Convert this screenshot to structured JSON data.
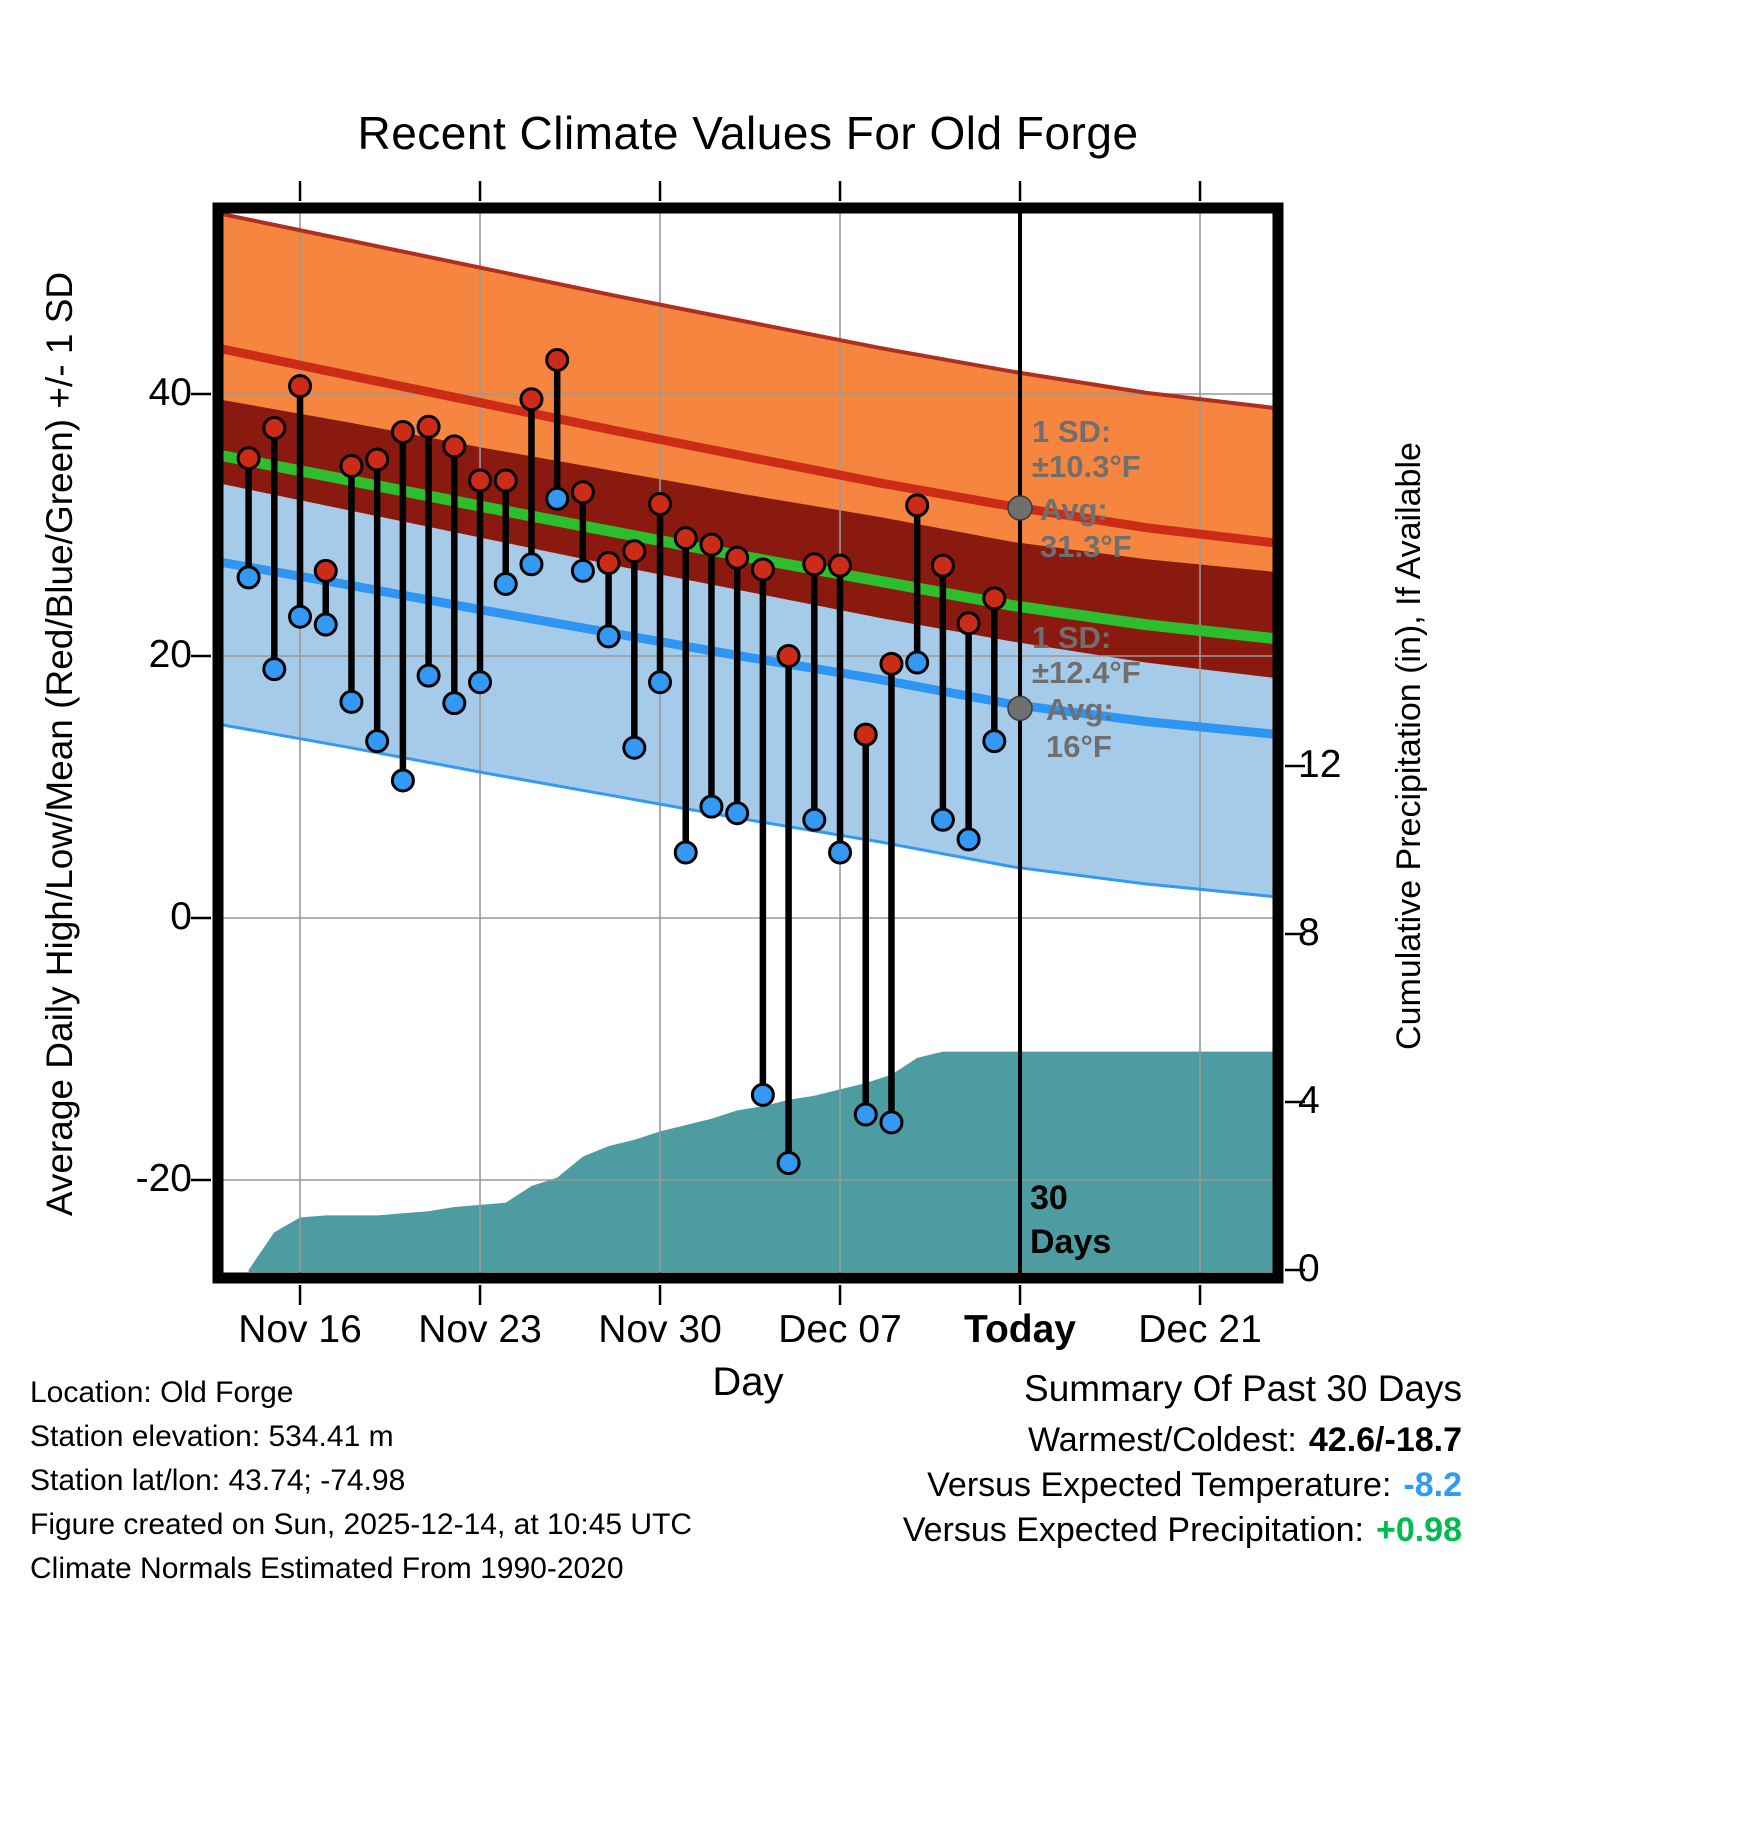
{
  "chart_data": {
    "type": "line",
    "title": "Recent Climate Values For Old Forge",
    "x_label": "Day",
    "y_left_label": "Average Daily High/Low/Mean (Red/Blue/Green) +/- 1 SD",
    "y_right_label": "Cumulative Precipitation (in), If Available",
    "y_left_tick_values": [
      40,
      20,
      0,
      -20
    ],
    "y_left_tick_labels": [
      "40",
      "20",
      "0",
      "-20"
    ],
    "y_right_tick_values": [
      12,
      8,
      4,
      0
    ],
    "y_right_tick_labels": [
      "12",
      "8",
      "4",
      "0"
    ],
    "y_left_range": [
      -27.5,
      54.2
    ],
    "y_right_range": [
      0,
      13.3
    ],
    "x_ticks": [
      {
        "label": "Nov 16",
        "day": 2
      },
      {
        "label": "Nov 23",
        "day": 9
      },
      {
        "label": "Nov 30",
        "day": 16
      },
      {
        "label": "Dec 07",
        "day": 23
      },
      {
        "label": "Today",
        "day": 30
      },
      {
        "label": "Dec 21",
        "day": 37
      }
    ],
    "start_date": "Nov 14",
    "today_index": 30,
    "dates": [
      "Nov 14",
      "Nov 15",
      "Nov 16",
      "Nov 17",
      "Nov 18",
      "Nov 19",
      "Nov 20",
      "Nov 21",
      "Nov 22",
      "Nov 23",
      "Nov 24",
      "Nov 25",
      "Nov 26",
      "Nov 27",
      "Nov 28",
      "Nov 29",
      "Nov 30",
      "Dec 01",
      "Dec 02",
      "Dec 03",
      "Dec 04",
      "Dec 05",
      "Dec 06",
      "Dec 07",
      "Dec 08",
      "Dec 09",
      "Dec 10",
      "Dec 11",
      "Dec 12",
      "Dec 13"
    ],
    "daily_high": [
      35.1,
      37.4,
      40.6,
      26.5,
      34.5,
      35.0,
      37.1,
      37.5,
      36.0,
      33.4,
      33.4,
      39.6,
      42.6,
      32.5,
      27.1,
      28.0,
      31.6,
      29.0,
      28.5,
      27.5,
      26.6,
      20.0,
      27.0,
      26.9,
      14.0,
      19.4,
      31.5,
      26.9,
      22.5,
      24.4
    ],
    "daily_low": [
      26.0,
      19.0,
      23.0,
      22.4,
      16.5,
      13.5,
      10.5,
      18.5,
      16.4,
      18.0,
      25.5,
      27.0,
      32.0,
      26.5,
      21.5,
      13.0,
      18.0,
      5.0,
      8.5,
      8.0,
      -13.5,
      -18.7,
      7.5,
      5.0,
      -15.0,
      -15.6,
      19.5,
      7.5,
      6.0,
      13.5
    ],
    "normals": {
      "mean_high": [
        43.5,
        41.4,
        39.3,
        37.2,
        35.2,
        33.2,
        31.4,
        29.8,
        28.6
      ],
      "mean_low": [
        27.2,
        25.4,
        23.5,
        21.7,
        19.9,
        18.2,
        16.3,
        15.0,
        14.0
      ],
      "high_sd": 10.3,
      "low_sd": 12.4,
      "today_mean_high": 31.3,
      "today_mean_low": 16
    },
    "cumulative_precip": [
      0.0,
      0.9,
      1.25,
      1.3,
      1.3,
      1.3,
      1.35,
      1.4,
      1.5,
      1.55,
      1.6,
      2.0,
      2.2,
      2.7,
      2.95,
      3.1,
      3.3,
      3.45,
      3.6,
      3.8,
      3.9,
      4.05,
      4.15,
      4.3,
      4.45,
      4.65,
      5.05,
      5.2,
      5.2,
      5.2,
      5.2
    ],
    "annotations": {
      "high_sd_label": "1 SD:",
      "high_sd_value": "±10.3°F",
      "high_avg_label": "Avg:",
      "high_avg_value": "31.3°F",
      "low_sd_label": "1 SD:",
      "low_sd_value": "±12.4°F",
      "low_avg_label": "Avg:",
      "low_avg_value": "16°F",
      "today_label": "30 Days"
    }
  },
  "footer_left": [
    "Location: Old Forge",
    "Station elevation: 534.41 m",
    "Station lat/lon: 43.74; -74.98",
    "Figure created on Sun, 2025-12-14, at 10:45 UTC",
    "Climate Normals Estimated From 1990-2020"
  ],
  "summary": {
    "title": "Summary Of Past 30 Days",
    "rows": [
      {
        "label": "Warmest/Coldest:",
        "value": "42.6/-18.7",
        "value_color": "#000000"
      },
      {
        "label": "Versus Expected Temperature:",
        "value": "-8.2",
        "value_color": "#2E9BF5"
      },
      {
        "label": "Versus Expected Precipitation:",
        "value": "+0.98",
        "value_color": "#00BB4E"
      }
    ]
  },
  "colors": {
    "high_band": "#F5853F",
    "high_band_edge": "#B02E1E",
    "mean_high_line": "#CB2B17",
    "overlap_band": "#8A1A10",
    "mean_line": "#2DBE2D",
    "low_band": "#A5CBE9",
    "low_band_edge": "#3498F5",
    "mean_low_line": "#2F95F3",
    "high_dot": "#CB2B17",
    "low_dot": "#3498F5",
    "precip_fill": "#4D9CA1",
    "gridline": "#999999",
    "annotation_gray": "#6F6F6F",
    "today_line": "#000000"
  }
}
